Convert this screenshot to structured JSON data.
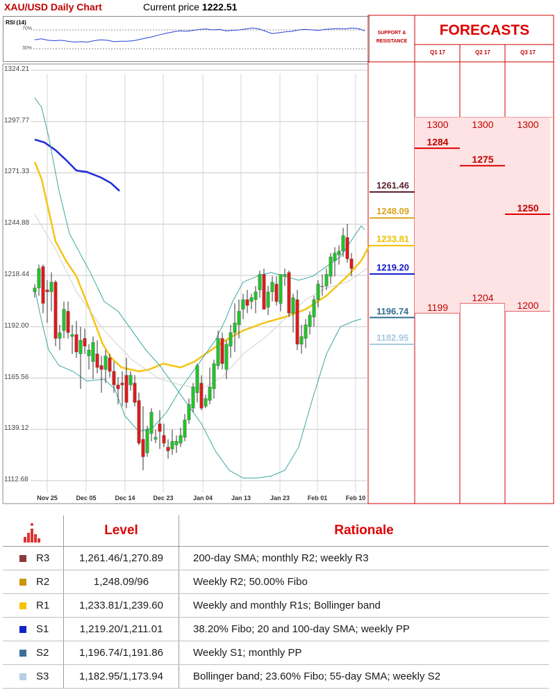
{
  "header": {
    "title": "XAU/USD Daily Chart",
    "price_label": "Current price",
    "price_value": "1222.51"
  },
  "rsi": {
    "label": "RSI (14)",
    "levels": [
      "70%",
      "30%"
    ]
  },
  "side": {
    "support_resistance_label": "SUPPORT & RESISTANCE",
    "forecasts_title": "FORECASTS",
    "quarters": [
      "Q1 17",
      "Q2 17",
      "Q3 17"
    ]
  },
  "chart_data": {
    "type": "candlestick",
    "title": "XAU/USD Daily Chart",
    "y_ticks": [
      1324.21,
      1297.77,
      1271.33,
      1244.88,
      1218.44,
      1192.0,
      1165.56,
      1139.12,
      1112.68
    ],
    "y_tick_labels": [
      "1324.21",
      "1297.77",
      "1271.33",
      "1244.88",
      "1218.44",
      "1192.00",
      "1165.56",
      "1139.12",
      "1112.68"
    ],
    "ylim": [
      1111.4,
      1325.6
    ],
    "x_labels": [
      "Nov 25",
      "Dec 05",
      "Dec 14",
      "Dec 23",
      "Jan 04",
      "Jan 13",
      "Jan 23",
      "Feb 01",
      "Feb 10"
    ],
    "x_label_index": [
      1,
      11,
      21,
      31,
      41,
      51,
      61,
      71,
      81
    ],
    "candles": [
      [
        1210,
        1214,
        1207,
        1212
      ],
      [
        1212,
        1224,
        1208,
        1222
      ],
      [
        1223,
        1224,
        1199,
        1204
      ],
      [
        1211,
        1216,
        1194,
        1210
      ],
      [
        1210,
        1220,
        1200,
        1215
      ],
      [
        1215,
        1216,
        1182,
        1186
      ],
      [
        1186,
        1193,
        1180,
        1189
      ],
      [
        1190,
        1205,
        1186,
        1201
      ],
      [
        1200,
        1205,
        1186,
        1189
      ],
      [
        1187,
        1193,
        1178,
        1188
      ],
      [
        1188,
        1195,
        1176,
        1179
      ],
      [
        1178,
        1192,
        1160,
        1185
      ],
      [
        1186,
        1191,
        1178,
        1182
      ],
      [
        1177,
        1183,
        1170,
        1180
      ],
      [
        1174,
        1187,
        1165,
        1184
      ],
      [
        1178,
        1185,
        1168,
        1171
      ],
      [
        1172,
        1177,
        1158,
        1170
      ],
      [
        1170,
        1180,
        1163,
        1177
      ],
      [
        1176,
        1178,
        1166,
        1169
      ],
      [
        1169,
        1174,
        1158,
        1162
      ],
      [
        1162,
        1166,
        1152,
        1160
      ],
      [
        1163,
        1169,
        1151,
        1162
      ],
      [
        1167,
        1176,
        1150,
        1153
      ],
      [
        1162,
        1169,
        1159,
        1167
      ],
      [
        1163,
        1167,
        1151,
        1153
      ],
      [
        1154,
        1158,
        1131,
        1132
      ],
      [
        1134,
        1151,
        1118,
        1125
      ],
      [
        1127,
        1141,
        1125,
        1139
      ],
      [
        1137,
        1150,
        1133,
        1148
      ],
      [
        1134,
        1139,
        1132,
        1135
      ],
      [
        1142,
        1149,
        1129,
        1138
      ],
      [
        1136,
        1142,
        1130,
        1132
      ],
      [
        1130,
        1134,
        1124,
        1128
      ],
      [
        1129,
        1139,
        1126,
        1133
      ],
      [
        1131,
        1136,
        1127,
        1133
      ],
      [
        1132,
        1140,
        1130,
        1136
      ],
      [
        1135,
        1147,
        1133,
        1144
      ],
      [
        1144,
        1155,
        1142,
        1152
      ],
      [
        1150,
        1163,
        1148,
        1161
      ],
      [
        1158,
        1173,
        1153,
        1172
      ],
      [
        1163,
        1167,
        1149,
        1150
      ],
      [
        1151,
        1157,
        1150,
        1155
      ],
      [
        1154,
        1171,
        1152,
        1161
      ],
      [
        1160,
        1175,
        1155,
        1173
      ],
      [
        1172,
        1190,
        1170,
        1186
      ],
      [
        1186,
        1189,
        1170,
        1173
      ],
      [
        1170,
        1185,
        1165,
        1183
      ],
      [
        1182,
        1193,
        1176,
        1189
      ],
      [
        1189,
        1204,
        1179,
        1194
      ],
      [
        1193,
        1206,
        1186,
        1200
      ],
      [
        1201,
        1209,
        1196,
        1206
      ],
      [
        1206,
        1211,
        1199,
        1203
      ],
      [
        1205,
        1209,
        1201,
        1207
      ],
      [
        1206,
        1213,
        1199,
        1210
      ],
      [
        1211,
        1221,
        1207,
        1219
      ],
      [
        1219,
        1222,
        1201,
        1201
      ],
      [
        1202,
        1213,
        1198,
        1210
      ],
      [
        1210,
        1218,
        1205,
        1215
      ],
      [
        1214,
        1218,
        1203,
        1205
      ],
      [
        1204,
        1219,
        1200,
        1219
      ],
      [
        1218,
        1222,
        1213,
        1219
      ],
      [
        1220,
        1221,
        1197,
        1199
      ],
      [
        1199,
        1209,
        1189,
        1207
      ],
      [
        1206,
        1211,
        1180,
        1183
      ],
      [
        1183,
        1193,
        1178,
        1187
      ],
      [
        1186,
        1196,
        1181,
        1193
      ],
      [
        1192,
        1200,
        1188,
        1198
      ],
      [
        1197,
        1208,
        1192,
        1206
      ],
      [
        1206,
        1216,
        1202,
        1214
      ],
      [
        1213,
        1219,
        1208,
        1213
      ],
      [
        1213,
        1222,
        1211,
        1219
      ],
      [
        1218,
        1230,
        1214,
        1228
      ],
      [
        1226,
        1233,
        1218,
        1230
      ],
      [
        1229,
        1234,
        1224,
        1231
      ],
      [
        1231,
        1243,
        1228,
        1239
      ],
      [
        1238,
        1245,
        1225,
        1227
      ],
      [
        1227,
        1230,
        1218,
        1222
      ]
    ],
    "series": [
      {
        "name": "",
        "color": "#1f2fd6",
        "points": [
          [
            0,
            1288.5
          ],
          [
            14,
            1287
          ],
          [
            30,
            1283
          ],
          [
            45,
            1278
          ],
          [
            60,
            1272.5
          ],
          [
            75,
            1271.8
          ],
          [
            95,
            1269
          ],
          [
            110,
            1266
          ],
          [
            122,
            1262
          ]
        ]
      },
      {
        "name": "",
        "color": "#f5c518",
        "points": [
          [
            0,
            1277
          ],
          [
            10,
            1268
          ],
          [
            20,
            1252
          ],
          [
            30,
            1236
          ],
          [
            45,
            1226
          ],
          [
            60,
            1218
          ],
          [
            80,
            1200
          ],
          [
            98,
            1183
          ],
          [
            110,
            1176
          ],
          [
            125,
            1171
          ],
          [
            150,
            1169
          ],
          [
            165,
            1170
          ],
          [
            185,
            1173
          ],
          [
            210,
            1171
          ],
          [
            230,
            1174
          ],
          [
            250,
            1179
          ],
          [
            270,
            1184
          ],
          [
            284,
            1187
          ],
          [
            300,
            1190
          ],
          [
            330,
            1194
          ],
          [
            360,
            1197
          ],
          [
            390,
            1201
          ],
          [
            420,
            1208
          ],
          [
            450,
            1218
          ],
          [
            470,
            1226
          ],
          [
            482,
            1234
          ]
        ]
      },
      {
        "name": "",
        "color": "#3aa6a0",
        "points": [
          [
            0,
            1310
          ],
          [
            10,
            1305
          ],
          [
            20,
            1290
          ],
          [
            35,
            1262
          ],
          [
            50,
            1240
          ],
          [
            65,
            1230
          ],
          [
            80,
            1220
          ],
          [
            100,
            1205
          ],
          [
            120,
            1200
          ],
          [
            140,
            1190
          ],
          [
            160,
            1180
          ],
          [
            180,
            1172
          ],
          [
            200,
            1162
          ],
          [
            220,
            1152
          ],
          [
            240,
            1142
          ],
          [
            260,
            1128
          ],
          [
            280,
            1118
          ],
          [
            300,
            1114
          ],
          [
            320,
            1114
          ],
          [
            340,
            1115
          ],
          [
            360,
            1118
          ],
          [
            380,
            1130
          ],
          [
            400,
            1155
          ],
          [
            420,
            1178
          ],
          [
            440,
            1192
          ],
          [
            460,
            1195
          ],
          [
            470,
            1196
          ]
        ]
      },
      {
        "name": "",
        "color": "#3aa6a0",
        "points": [
          [
            0,
            1212
          ],
          [
            8,
            1198
          ],
          [
            20,
            1180
          ],
          [
            35,
            1172
          ],
          [
            55,
            1169
          ],
          [
            75,
            1164
          ],
          [
            100,
            1165
          ],
          [
            115,
            1160
          ],
          [
            130,
            1146
          ],
          [
            150,
            1138
          ],
          [
            170,
            1140
          ],
          [
            190,
            1148
          ],
          [
            210,
            1160
          ],
          [
            240,
            1175
          ],
          [
            260,
            1185
          ],
          [
            275,
            1196
          ],
          [
            285,
            1205
          ],
          [
            300,
            1215
          ],
          [
            320,
            1218
          ],
          [
            340,
            1220
          ],
          [
            360,
            1218
          ],
          [
            380,
            1216
          ],
          [
            400,
            1218
          ],
          [
            420,
            1223
          ],
          [
            440,
            1228
          ],
          [
            455,
            1236
          ],
          [
            470,
            1244
          ],
          [
            475,
            1242
          ]
        ]
      },
      {
        "name": "",
        "color": "#d0d0d0",
        "points": [
          [
            0,
            1250
          ],
          [
            30,
            1232
          ],
          [
            60,
            1210
          ],
          [
            100,
            1190
          ],
          [
            140,
            1175
          ],
          [
            180,
            1165
          ],
          [
            210,
            1162
          ],
          [
            240,
            1160
          ],
          [
            270,
            1166
          ],
          [
            300,
            1178
          ],
          [
            330,
            1186
          ],
          [
            360,
            1196
          ],
          [
            390,
            1206
          ],
          [
            420,
            1212
          ],
          [
            450,
            1215
          ],
          [
            470,
            1220
          ],
          [
            482,
            1223
          ]
        ]
      }
    ],
    "rsi": [
      49,
      51,
      48,
      47,
      48,
      46,
      44,
      45,
      44,
      47,
      49,
      48,
      45,
      46,
      46,
      47,
      50,
      53,
      56,
      60,
      63,
      66,
      68,
      67,
      69,
      71,
      72,
      70,
      71,
      68,
      69,
      70,
      72,
      74,
      72,
      67,
      62,
      64,
      66,
      67,
      70,
      71,
      70,
      69,
      71,
      72,
      73,
      72,
      74,
      73,
      68
    ],
    "support_resistance": [
      {
        "value": "1261.46",
        "num": 1261.46,
        "color": "#5b1e2d"
      },
      {
        "value": "1248.09",
        "num": 1248.09,
        "color": "#d9a21a"
      },
      {
        "value": "1233.81",
        "num": 1233.81,
        "color": "#f0c000"
      },
      {
        "value": "1219.20",
        "num": 1219.2,
        "color": "#1016c8"
      },
      {
        "value": "1196.74",
        "num": 1196.74,
        "color": "#2f6d92"
      },
      {
        "value": "1182.95",
        "num": 1182.95,
        "color": "#a9c8de"
      }
    ],
    "forecasts": [
      {
        "quarter": "Q1 17",
        "high": 1300,
        "mid": 1284,
        "low": 1199
      },
      {
        "quarter": "Q2 17",
        "high": 1300,
        "mid": 1275,
        "low": 1204
      },
      {
        "quarter": "Q3 17",
        "high": 1300,
        "mid": 1250,
        "low": 1200
      }
    ]
  },
  "levels_table": {
    "headers": {
      "level": "Level",
      "rationale": "Rationale"
    },
    "rows": [
      {
        "name": "R3",
        "color": "#8b3a3a",
        "level": "1,261.46/1,270.89",
        "rationale": "200-day SMA; monthly R2; weekly R3"
      },
      {
        "name": "R2",
        "color": "#c8960c",
        "level": "1,248.09/96",
        "rationale": "Weekly R2; 50.00% Fibo"
      },
      {
        "name": "R1",
        "color": "#f5c400",
        "level": "1,233.81/1,239.60",
        "rationale": "Weekly and monthly R1s; Bollinger band"
      },
      {
        "name": "S1",
        "color": "#1322c8",
        "level": "1,219.20/1,211.01",
        "rationale": "38.20% Fibo; 20 and 100-day SMA; weekly PP"
      },
      {
        "name": "S2",
        "color": "#3a6e9c",
        "level": "1,196.74/1,191.86",
        "rationale": "Weekly S1; monthly PP"
      },
      {
        "name": "S3",
        "color": "#b7cfe6",
        "level": "1,182.95/1,173.94",
        "rationale": "Bollinger band; 23.60% Fibo; 55-day SMA; weekly S2"
      }
    ]
  }
}
